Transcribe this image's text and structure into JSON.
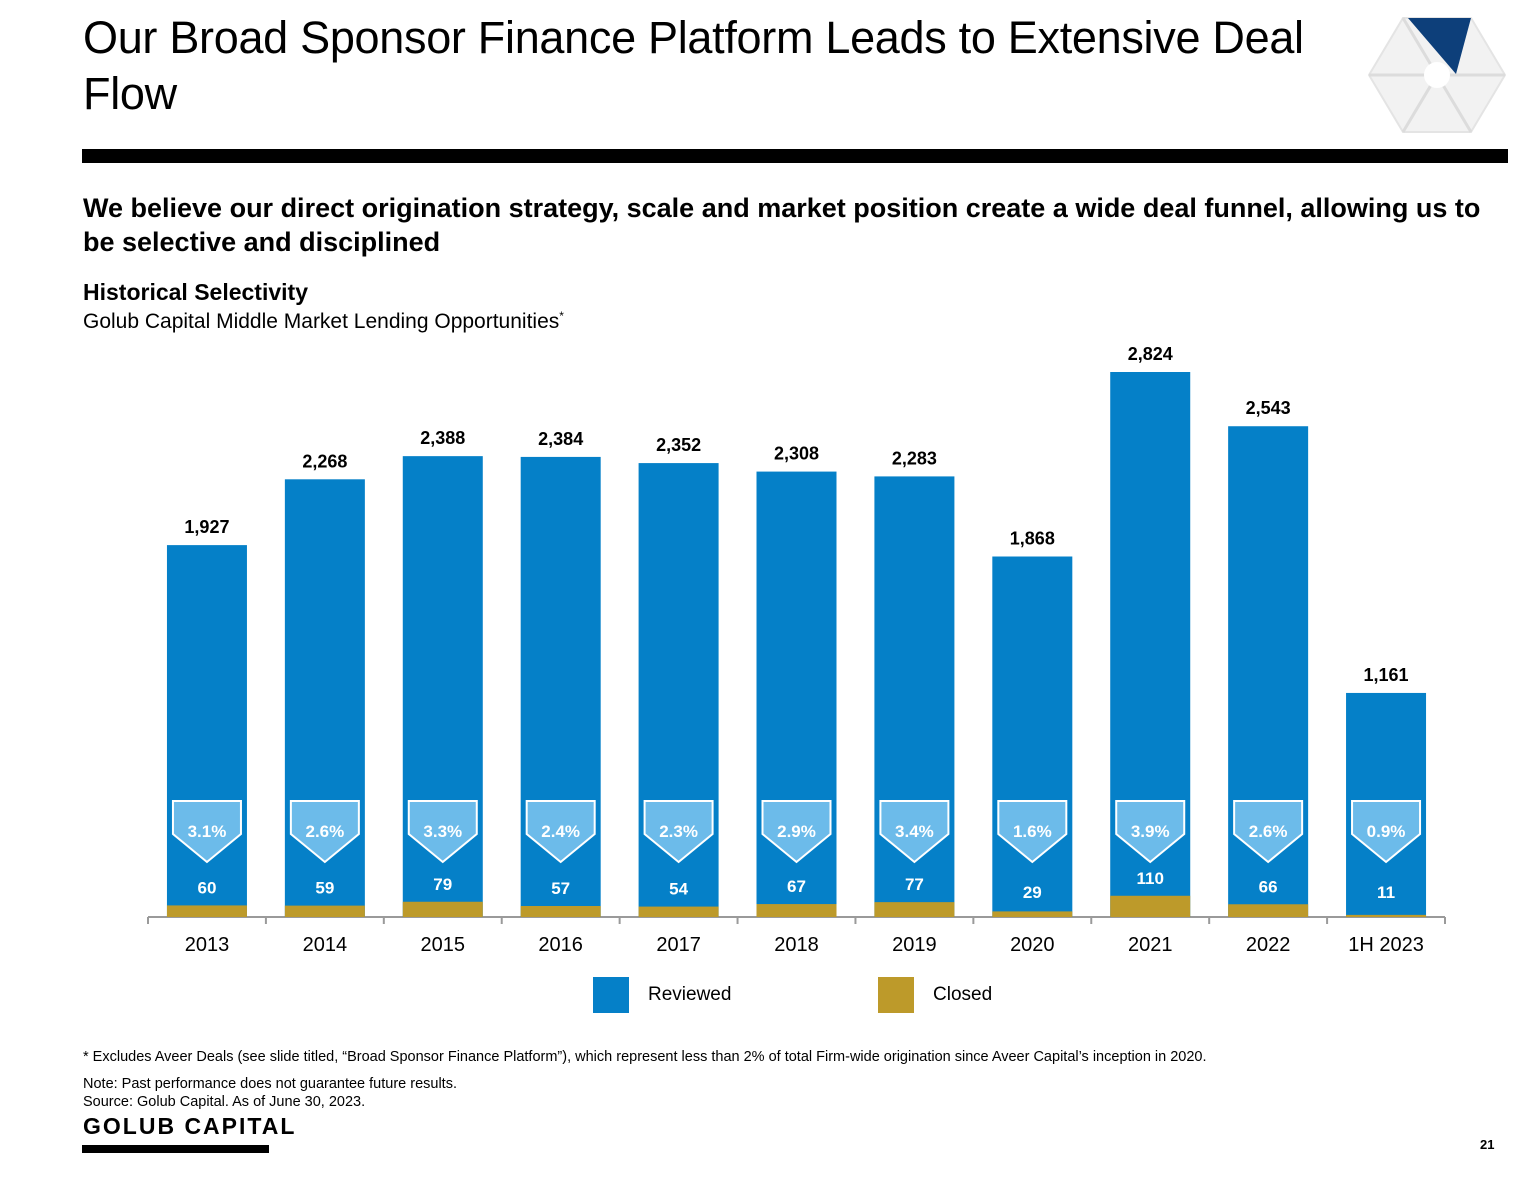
{
  "header": {
    "title": "Our Broad Sponsor Finance Platform Leads to Extensive Deal Flow",
    "headline": "We believe our direct origination strategy, scale and market position create a wide deal funnel, allowing us to be selective and disciplined"
  },
  "chart_data": {
    "type": "bar",
    "title": "Historical Selectivity",
    "subtitle": "Golub Capital Middle Market Lending Opportunities",
    "subtitle_mark": "*",
    "categories": [
      "2013",
      "2014",
      "2015",
      "2016",
      "2017",
      "2018",
      "2019",
      "2020",
      "2021",
      "2022",
      "1H 2023"
    ],
    "series": [
      {
        "name": "Reviewed",
        "color": "#0580c8",
        "values": [
          1927,
          2268,
          2388,
          2384,
          2352,
          2308,
          2283,
          1868,
          2824,
          2543,
          1161
        ],
        "labels": [
          "1,927",
          "2,268",
          "2,388",
          "2,384",
          "2,352",
          "2,308",
          "2,283",
          "1,868",
          "2,824",
          "2,543",
          "1,161"
        ]
      },
      {
        "name": "Closed",
        "color": "#bd9a2a",
        "values": [
          60,
          59,
          79,
          57,
          54,
          67,
          77,
          29,
          110,
          66,
          11
        ],
        "labels": [
          "60",
          "59",
          "79",
          "57",
          "54",
          "67",
          "77",
          "29",
          "110",
          "66",
          "11"
        ]
      }
    ],
    "close_rates": [
      "3.1%",
      "2.6%",
      "3.3%",
      "2.4%",
      "2.3%",
      "2.9%",
      "3.4%",
      "1.6%",
      "3.9%",
      "2.6%",
      "0.9%"
    ],
    "ylim": [
      0,
      2850
    ],
    "grid": false,
    "legend": "bottom-center"
  },
  "colors": {
    "reviewed": "#0580c8",
    "closed": "#bd9a2a",
    "rate_badge": "#6cbbea",
    "axis": "#9a9a9a"
  },
  "footer": {
    "footnote": "* Excludes Aveer Deals (see slide titled, “Broad Sponsor Finance Platform”), which represent less than 2% of total Firm-wide origination since Aveer Capital’s inception in 2020.",
    "note": "Note: Past performance does not guarantee future results.",
    "source": "Source: Golub Capital. As of June 30, 2023.",
    "brand": "GOLUB CAPITAL",
    "page_number": "21"
  },
  "logo": {
    "icon": "golub-aperture-logo"
  }
}
